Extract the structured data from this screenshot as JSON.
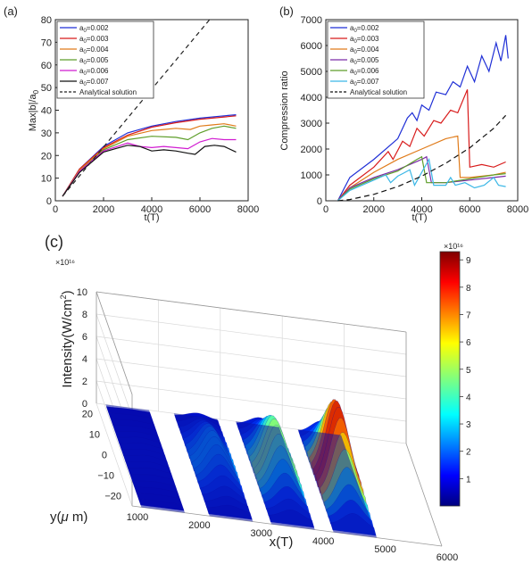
{
  "panel_labels": {
    "a": "(a)",
    "b": "(b)",
    "c": "(c)"
  },
  "chart_data": [
    {
      "type": "line",
      "panel": "(a)",
      "xlabel": "t(T)",
      "ylabel": "Max|b|/a",
      "ylabel_sub": "0",
      "xlim": [
        0,
        8000
      ],
      "ylim": [
        0,
        80
      ],
      "xticks": [
        0,
        2000,
        4000,
        6000,
        8000
      ],
      "yticks": [
        0,
        10,
        20,
        30,
        40,
        50,
        60,
        70,
        80
      ],
      "legend_position": "top-left",
      "series": [
        {
          "name_main": "a",
          "name_sub": "0",
          "name_rest": "=0.002",
          "color": "#1f2fd6",
          "dash": "",
          "points": [
            [
              300,
              2
            ],
            [
              1000,
              14
            ],
            [
              2000,
              24
            ],
            [
              3000,
              30
            ],
            [
              4000,
              33
            ],
            [
              5000,
              35
            ],
            [
              6000,
              36.5
            ],
            [
              7000,
              37.5
            ],
            [
              7500,
              38
            ]
          ]
        },
        {
          "name_main": "a",
          "name_sub": "0",
          "name_rest": "=0.003",
          "color": "#d81b1b",
          "dash": "",
          "points": [
            [
              300,
              2
            ],
            [
              1000,
              14
            ],
            [
              2000,
              23.5
            ],
            [
              3000,
              29
            ],
            [
              4000,
              32.5
            ],
            [
              5000,
              34.5
            ],
            [
              6000,
              36
            ],
            [
              7000,
              37
            ],
            [
              7500,
              37.5
            ]
          ]
        },
        {
          "name_main": "a",
          "name_sub": "0",
          "name_rest": "=0.004",
          "color": "#e07b1a",
          "dash": "",
          "points": [
            [
              300,
              2
            ],
            [
              1000,
              13.5
            ],
            [
              2000,
              23
            ],
            [
              3000,
              28.5
            ],
            [
              4000,
              31
            ],
            [
              4500,
              31.5
            ],
            [
              5000,
              32
            ],
            [
              5600,
              31.5
            ],
            [
              6000,
              33
            ],
            [
              6500,
              33.5
            ],
            [
              7000,
              34
            ],
            [
              7500,
              33
            ]
          ]
        },
        {
          "name_main": "a",
          "name_sub": "0",
          "name_rest": "=0.005",
          "color": "#5e9e2a",
          "dash": "",
          "points": [
            [
              300,
              2
            ],
            [
              1000,
              13
            ],
            [
              2000,
              22.5
            ],
            [
              3000,
              27
            ],
            [
              4000,
              28.5
            ],
            [
              5000,
              28
            ],
            [
              5500,
              27
            ],
            [
              6000,
              30
            ],
            [
              6500,
              32
            ],
            [
              7000,
              33
            ],
            [
              7500,
              32
            ]
          ]
        },
        {
          "name_main": "a",
          "name_sub": "0",
          "name_rest": "=0.006",
          "color": "#d11bd1",
          "dash": "",
          "points": [
            [
              300,
              2
            ],
            [
              1000,
              13
            ],
            [
              2000,
              22
            ],
            [
              3000,
              25.5
            ],
            [
              3500,
              24
            ],
            [
              4000,
              23.5
            ],
            [
              4500,
              24
            ],
            [
              5000,
              23.5
            ],
            [
              5500,
              23
            ],
            [
              6000,
              26
            ],
            [
              6500,
              27.5
            ],
            [
              7000,
              27
            ],
            [
              7500,
              27
            ]
          ]
        },
        {
          "name_main": "a",
          "name_sub": "0",
          "name_rest": "=0.007",
          "color": "#111111",
          "dash": "",
          "points": [
            [
              300,
              2
            ],
            [
              1000,
              12.5
            ],
            [
              2000,
              21.5
            ],
            [
              3000,
              24.5
            ],
            [
              3500,
              24
            ],
            [
              4000,
              22
            ],
            [
              4500,
              22.5
            ],
            [
              5000,
              22
            ],
            [
              5500,
              21
            ],
            [
              5800,
              20.5
            ],
            [
              6200,
              24
            ],
            [
              6600,
              24.5
            ],
            [
              7000,
              24
            ],
            [
              7500,
              21.5
            ]
          ]
        },
        {
          "name_main": "Analytical solution",
          "name_sub": "",
          "name_rest": "",
          "color": "#222222",
          "dash": "5,4",
          "points": [
            [
              300,
              2
            ],
            [
              6400,
              80
            ]
          ]
        }
      ]
    },
    {
      "type": "line",
      "panel": "(b)",
      "xlabel": "t(T)",
      "ylabel": "Compression ratio",
      "xlim": [
        0,
        8000
      ],
      "ylim": [
        0,
        7000
      ],
      "xticks": [
        0,
        2000,
        4000,
        6000,
        8000
      ],
      "yticks": [
        0,
        1000,
        2000,
        3000,
        4000,
        5000,
        6000,
        7000
      ],
      "legend_position": "top-left",
      "series": [
        {
          "name_main": "a",
          "name_sub": "0",
          "name_rest": "=0.002",
          "color": "#1f2fd6",
          "dash": "",
          "points": [
            [
              500,
              0
            ],
            [
              1000,
              900
            ],
            [
              2000,
              1600
            ],
            [
              3000,
              2400
            ],
            [
              3400,
              3200
            ],
            [
              3600,
              3400
            ],
            [
              3800,
              3100
            ],
            [
              4000,
              3700
            ],
            [
              4300,
              3500
            ],
            [
              4600,
              4200
            ],
            [
              5000,
              4100
            ],
            [
              5300,
              4600
            ],
            [
              5600,
              4400
            ],
            [
              5900,
              5200
            ],
            [
              6200,
              4600
            ],
            [
              6500,
              5600
            ],
            [
              6800,
              5000
            ],
            [
              7100,
              6100
            ],
            [
              7300,
              5400
            ],
            [
              7500,
              6400
            ],
            [
              7600,
              5500
            ]
          ]
        },
        {
          "name_main": "a",
          "name_sub": "0",
          "name_rest": "=0.003",
          "color": "#d81b1b",
          "dash": "",
          "points": [
            [
              500,
              0
            ],
            [
              1000,
              600
            ],
            [
              2000,
              1300
            ],
            [
              2600,
              1900
            ],
            [
              2800,
              1600
            ],
            [
              3200,
              2300
            ],
            [
              3500,
              2100
            ],
            [
              3800,
              2800
            ],
            [
              4100,
              2500
            ],
            [
              4500,
              3100
            ],
            [
              4800,
              3000
            ],
            [
              5200,
              3500
            ],
            [
              5500,
              3400
            ],
            [
              5900,
              4300
            ],
            [
              6000,
              1300
            ],
            [
              6500,
              1400
            ],
            [
              7000,
              1300
            ],
            [
              7500,
              1500
            ]
          ]
        },
        {
          "name_main": "a",
          "name_sub": "0",
          "name_rest": "=0.004",
          "color": "#e07b1a",
          "dash": "",
          "points": [
            [
              500,
              0
            ],
            [
              1000,
              500
            ],
            [
              2000,
              1100
            ],
            [
              3000,
              1600
            ],
            [
              4000,
              2000
            ],
            [
              5000,
              2400
            ],
            [
              5500,
              2500
            ],
            [
              5600,
              900
            ],
            [
              6000,
              900
            ],
            [
              7000,
              1000
            ],
            [
              7500,
              1100
            ]
          ]
        },
        {
          "name_main": "a",
          "name_sub": "0",
          "name_rest": "=0.005",
          "color": "#7a2aa8",
          "dash": "",
          "points": [
            [
              500,
              0
            ],
            [
              1000,
              500
            ],
            [
              2000,
              900
            ],
            [
              3000,
              1200
            ],
            [
              4000,
              1600
            ],
            [
              4200,
              1700
            ],
            [
              4400,
              700
            ],
            [
              5000,
              700
            ],
            [
              6000,
              800
            ],
            [
              7000,
              900
            ],
            [
              7500,
              950
            ]
          ]
        },
        {
          "name_main": "a",
          "name_sub": "0",
          "name_rest": "=0.006",
          "color": "#5e9e2a",
          "dash": "",
          "points": [
            [
              500,
              0
            ],
            [
              1000,
              450
            ],
            [
              2000,
              850
            ],
            [
              3000,
              1150
            ],
            [
              3800,
              1600
            ],
            [
              4000,
              1700
            ],
            [
              4200,
              700
            ],
            [
              5000,
              700
            ],
            [
              6000,
              850
            ],
            [
              7000,
              1000
            ],
            [
              7500,
              1050
            ]
          ]
        },
        {
          "name_main": "a",
          "name_sub": "0",
          "name_rest": "=0.007",
          "color": "#3bb7e6",
          "dash": "",
          "points": [
            [
              500,
              0
            ],
            [
              1000,
              400
            ],
            [
              2000,
              800
            ],
            [
              2500,
              1000
            ],
            [
              2700,
              700
            ],
            [
              3000,
              950
            ],
            [
              3200,
              1050
            ],
            [
              3500,
              1200
            ],
            [
              3700,
              600
            ],
            [
              4000,
              1100
            ],
            [
              4300,
              1600
            ],
            [
              4500,
              600
            ],
            [
              5000,
              600
            ],
            [
              5200,
              900
            ],
            [
              5400,
              600
            ],
            [
              5800,
              700
            ],
            [
              6200,
              500
            ],
            [
              6600,
              600
            ],
            [
              7000,
              900
            ],
            [
              7200,
              600
            ],
            [
              7500,
              550
            ]
          ]
        },
        {
          "name_main": "Analytical solution",
          "name_sub": "",
          "name_rest": "",
          "color": "#111111",
          "dash": "6,4",
          "points": [
            [
              500,
              0
            ],
            [
              1000,
              50
            ],
            [
              2000,
              250
            ],
            [
              3000,
              550
            ],
            [
              4000,
              950
            ],
            [
              5000,
              1450
            ],
            [
              6000,
              2050
            ],
            [
              7000,
              2800
            ],
            [
              7500,
              3300
            ]
          ]
        }
      ]
    },
    {
      "type": "surface",
      "panel": "(c)",
      "xlabel": "x(T)",
      "ylabel": "y(μ m)",
      "ylabel_parts": [
        "y(",
        "μ",
        " m)"
      ],
      "zlabel": "Intensity(W/cm²)",
      "zlabel_parts": [
        "Intensity(W/cm",
        "2",
        ")"
      ],
      "x_ticks": [
        "1000",
        "2000",
        "3000",
        "4000",
        "5000",
        "6000"
      ],
      "y_ticks": [
        "20",
        "10",
        "0",
        "−10",
        "−20"
      ],
      "z_ticks": [
        "0",
        "2",
        "4",
        "6",
        "8",
        "10"
      ],
      "z_exponent": "×10¹⁶",
      "colorbar_ticks": [
        "1",
        "2",
        "3",
        "4",
        "5",
        "6",
        "7",
        "8",
        "9"
      ],
      "colorbar_exponent": "×10¹⁶",
      "colorbar_max": 9.3,
      "pulses": [
        {
          "x_center": 1500,
          "peak": 0.4
        },
        {
          "x_center": 2600,
          "peak": 3.6
        },
        {
          "x_center": 3600,
          "peak": 5.9
        },
        {
          "x_center": 4600,
          "peak": 8.9
        }
      ]
    }
  ]
}
